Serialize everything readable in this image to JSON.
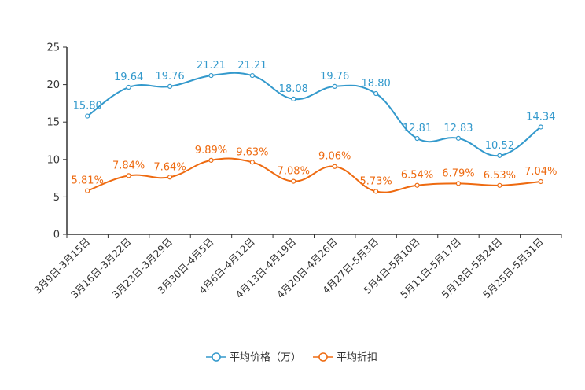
{
  "chart_data": {
    "type": "line",
    "title": "",
    "xlabel": "",
    "ylabel": "",
    "ylim": [
      0,
      25
    ],
    "yticks": [
      0,
      5,
      10,
      15,
      20,
      25
    ],
    "grid": false,
    "legend_position": "bottom-center",
    "smooth": true,
    "categories": [
      "3月9日-3月15日",
      "3月16日-3月22日",
      "3月23日-3月29日",
      "3月30日-4月5日",
      "4月6日-4月12日",
      "4月13日-4月19日",
      "4月20日-4月26日",
      "4月27日-5月3日",
      "5月4日-5月10日",
      "5月11日-5月17日",
      "5月18日-5月24日",
      "5月25日-5月31日"
    ],
    "series": [
      {
        "name": "平均价格（万）",
        "color": "#3399cc",
        "values": [
          15.8,
          19.64,
          19.76,
          21.21,
          21.21,
          18.08,
          19.76,
          18.8,
          12.81,
          12.83,
          10.52,
          14.34
        ],
        "labels": [
          "15.80",
          "19.64",
          "19.76",
          "21.21",
          "21.21",
          "18.08",
          "19.76",
          "18.80",
          "12.81",
          "12.83",
          "10.52",
          "14.34"
        ]
      },
      {
        "name": "平均折扣",
        "color": "#ee6a10",
        "values": [
          5.81,
          7.84,
          7.64,
          9.89,
          9.63,
          7.08,
          9.06,
          5.73,
          6.54,
          6.79,
          6.53,
          7.04
        ],
        "labels": [
          "5.81%",
          "7.84%",
          "7.64%",
          "9.89%",
          "9.63%",
          "7.08%",
          "9.06%",
          "5.73%",
          "6.54%",
          "6.79%",
          "6.53%",
          "7.04%"
        ]
      }
    ]
  }
}
